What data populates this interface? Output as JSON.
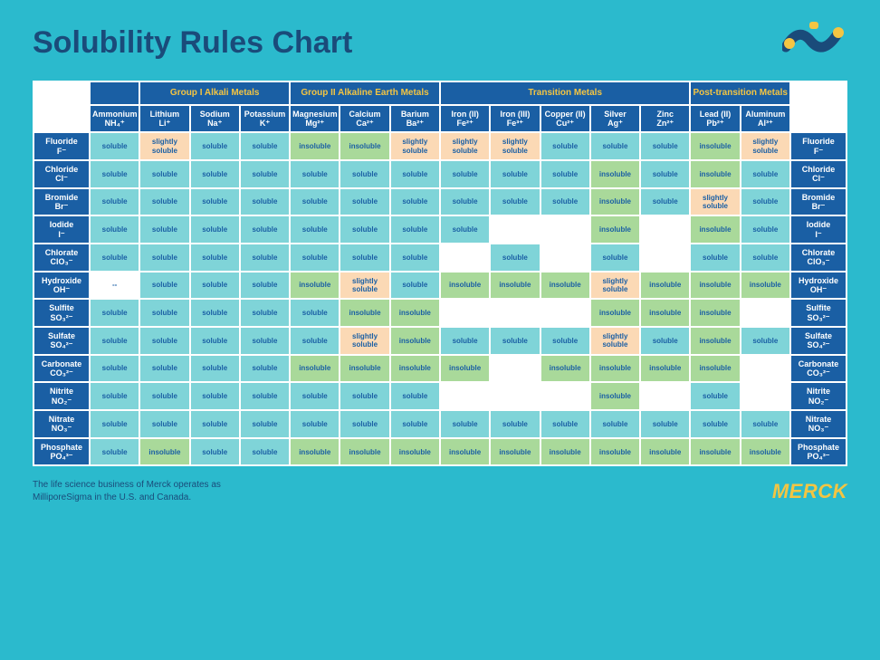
{
  "title": "Solubility Rules Chart",
  "footnote": "The life science business of Merck operates as MilliporeSigma in the U.S. and Canada.",
  "brand": "MERCK",
  "colors": {
    "page_bg": "#2bbacd",
    "header_bg": "#1a5fa4",
    "group_text": "#f4c542",
    "cat_text": "#ffffff",
    "cell_text": "#1a5fa4",
    "soluble_bg": "#7fd4d8",
    "slightly_bg": "#fbd9b5",
    "insoluble_bg": "#a9d99a",
    "title_color": "#1a4b7a"
  },
  "legend": {
    "sol": "soluble",
    "ss": "slightly soluble",
    "ins": "insoluble",
    "dash": "--"
  },
  "groups": [
    {
      "label": "",
      "span": 1
    },
    {
      "label": "Group I Alkali Metals",
      "span": 3
    },
    {
      "label": "Group II Alkaline Earth Metals",
      "span": 3
    },
    {
      "label": "Transition Metals",
      "span": 5
    },
    {
      "label": "Post-transition Metals",
      "span": 2
    }
  ],
  "cations": [
    {
      "name": "Ammonium",
      "formula": "NH₄⁺"
    },
    {
      "name": "Lithium",
      "formula": "Li⁺"
    },
    {
      "name": "Sodium",
      "formula": "Na⁺"
    },
    {
      "name": "Potassium",
      "formula": "K⁺"
    },
    {
      "name": "Magnesium",
      "formula": "Mg²⁺"
    },
    {
      "name": "Calcium",
      "formula": "Ca²⁺"
    },
    {
      "name": "Barium",
      "formula": "Ba²⁺"
    },
    {
      "name": "Iron (II)",
      "formula": "Fe²⁺"
    },
    {
      "name": "Iron (III)",
      "formula": "Fe³⁺"
    },
    {
      "name": "Copper (II)",
      "formula": "Cu²⁺"
    },
    {
      "name": "Silver",
      "formula": "Ag⁺"
    },
    {
      "name": "Zinc",
      "formula": "Zn²⁺"
    },
    {
      "name": "Lead (II)",
      "formula": "Pb²⁺"
    },
    {
      "name": "Aluminum",
      "formula": "Al³⁺"
    }
  ],
  "anions": [
    {
      "name": "Fluoride",
      "formula": "F⁻"
    },
    {
      "name": "Chloride",
      "formula": "Cl⁻"
    },
    {
      "name": "Bromide",
      "formula": "Br⁻"
    },
    {
      "name": "Iodide",
      "formula": "I⁻"
    },
    {
      "name": "Chlorate",
      "formula": "ClO₃⁻"
    },
    {
      "name": "Hydroxide",
      "formula": "OH⁻"
    },
    {
      "name": "Sulfite",
      "formula": "SO₃²⁻"
    },
    {
      "name": "Sulfate",
      "formula": "SO₄²⁻"
    },
    {
      "name": "Carbonate",
      "formula": "CO₃²⁻"
    },
    {
      "name": "Nitrite",
      "formula": "NO₂⁻"
    },
    {
      "name": "Nitrate",
      "formula": "NO₃⁻"
    },
    {
      "name": "Phosphate",
      "formula": "PO₄³⁻"
    }
  ],
  "data": [
    [
      "sol",
      "ss",
      "sol",
      "sol",
      "ins",
      "ins",
      "ss",
      "ss",
      "ss",
      "sol",
      "sol",
      "sol",
      "ins",
      "ss"
    ],
    [
      "sol",
      "sol",
      "sol",
      "sol",
      "sol",
      "sol",
      "sol",
      "sol",
      "sol",
      "sol",
      "ins",
      "sol",
      "ins",
      "sol"
    ],
    [
      "sol",
      "sol",
      "sol",
      "sol",
      "sol",
      "sol",
      "sol",
      "sol",
      "sol",
      "sol",
      "ins",
      "sol",
      "ss",
      "sol"
    ],
    [
      "sol",
      "sol",
      "sol",
      "sol",
      "sol",
      "sol",
      "sol",
      "sol",
      "",
      "",
      "ins",
      "",
      "ins",
      "sol"
    ],
    [
      "sol",
      "sol",
      "sol",
      "sol",
      "sol",
      "sol",
      "sol",
      "",
      "sol",
      "",
      "sol",
      "",
      "sol",
      "sol"
    ],
    [
      "dash",
      "sol",
      "sol",
      "sol",
      "ins",
      "ss",
      "sol",
      "ins",
      "ins",
      "ins",
      "ss",
      "ins",
      "ins",
      "ins"
    ],
    [
      "sol",
      "sol",
      "sol",
      "sol",
      "sol",
      "ins",
      "ins",
      "",
      "",
      "",
      "ins",
      "ins",
      "ins",
      ""
    ],
    [
      "sol",
      "sol",
      "sol",
      "sol",
      "sol",
      "ss",
      "ins",
      "sol",
      "sol",
      "sol",
      "ss",
      "sol",
      "ins",
      "sol"
    ],
    [
      "sol",
      "sol",
      "sol",
      "sol",
      "ins",
      "ins",
      "ins",
      "ins",
      "",
      "ins",
      "ins",
      "ins",
      "ins",
      ""
    ],
    [
      "sol",
      "sol",
      "sol",
      "sol",
      "sol",
      "sol",
      "sol",
      "",
      "",
      "",
      "ins",
      "",
      "sol",
      ""
    ],
    [
      "sol",
      "sol",
      "sol",
      "sol",
      "sol",
      "sol",
      "sol",
      "sol",
      "sol",
      "sol",
      "sol",
      "sol",
      "sol",
      "sol"
    ],
    [
      "sol",
      "ins",
      "sol",
      "sol",
      "ins",
      "ins",
      "ins",
      "ins",
      "ins",
      "ins",
      "ins",
      "ins",
      "ins",
      "ins"
    ]
  ]
}
